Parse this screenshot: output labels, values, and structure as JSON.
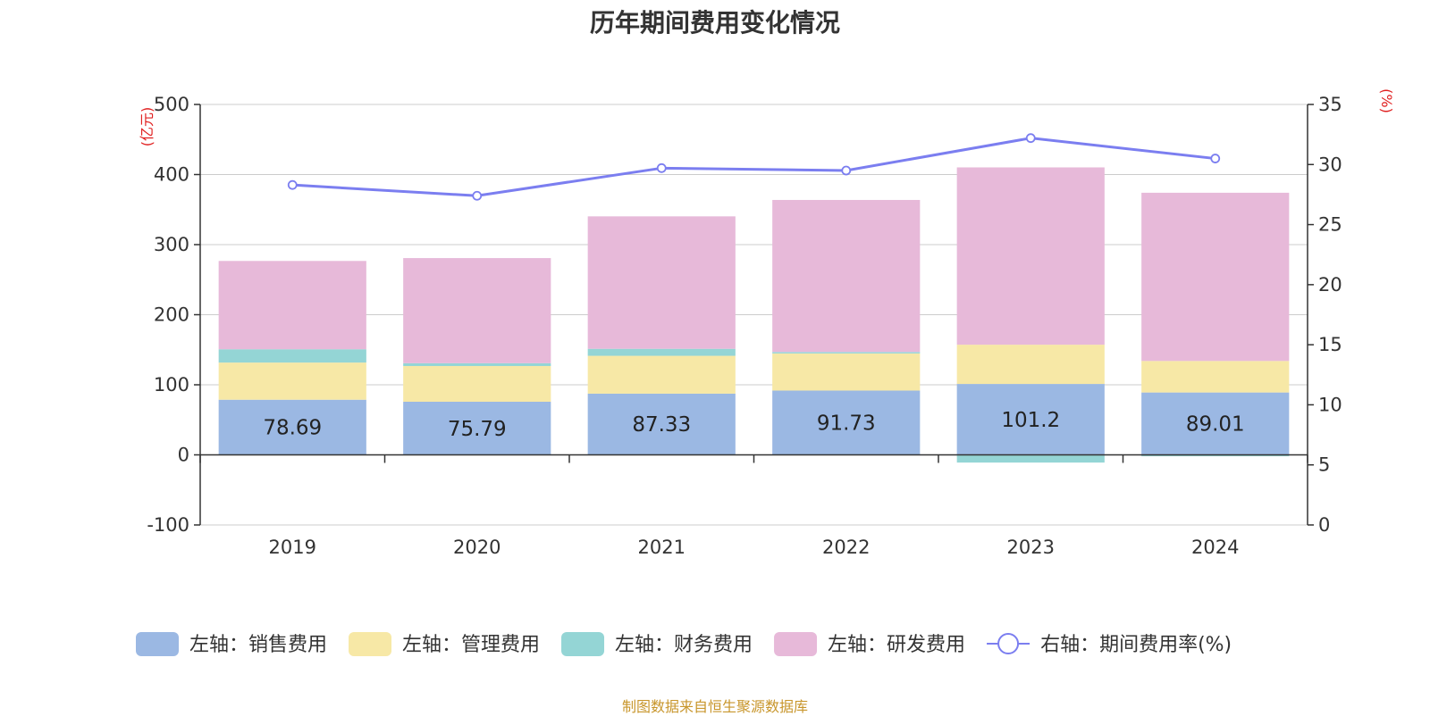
{
  "chart_data": {
    "type": "bar",
    "stacked": true,
    "title": "历年期间费用变化情况",
    "categories": [
      "2019",
      "2020",
      "2021",
      "2022",
      "2023",
      "2024"
    ],
    "left_axis": {
      "unit": "(亿元)",
      "ylim": [
        -100,
        500
      ],
      "ticks": [
        -100,
        0,
        100,
        200,
        300,
        400,
        500
      ]
    },
    "right_axis": {
      "unit": "(%)",
      "ylim": [
        0,
        35
      ],
      "ticks": [
        0,
        5,
        10,
        15,
        20,
        25,
        30,
        35
      ]
    },
    "series": [
      {
        "name": "左轴：销售费用",
        "type": "bar",
        "axis": "left",
        "color": "#9bb8e3",
        "values": [
          78.69,
          75.79,
          87.33,
          91.73,
          101.2,
          89.01
        ],
        "labels": [
          "78.69",
          "75.79",
          "87.33",
          "91.73",
          "101.2",
          "89.01"
        ]
      },
      {
        "name": "左轴：管理费用",
        "type": "bar",
        "axis": "left",
        "color": "#f7e8a6",
        "values": [
          53,
          51,
          54,
          53,
          56,
          45
        ]
      },
      {
        "name": "左轴：财务费用",
        "type": "bar",
        "axis": "left",
        "color": "#94d5d5",
        "values": [
          19,
          4,
          10,
          2,
          -11,
          -2
        ]
      },
      {
        "name": "左轴：研发费用",
        "type": "bar",
        "axis": "left",
        "color": "#e7b9d9",
        "values": [
          126,
          150,
          189,
          217,
          253,
          240
        ]
      },
      {
        "name": "右轴：期间费用率(%)",
        "type": "line",
        "axis": "right",
        "color": "#7b7ef0",
        "values": [
          28.3,
          27.4,
          29.7,
          29.5,
          32.2,
          30.5
        ]
      }
    ]
  },
  "source_note": "制图数据来自恒生聚源数据库"
}
